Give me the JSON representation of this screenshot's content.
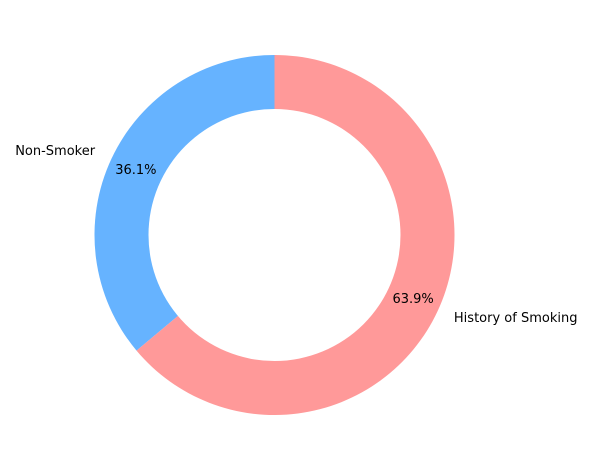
{
  "chart_data": {
    "type": "pie",
    "title": "",
    "hole": "donut",
    "start_angle_deg": 90,
    "direction": "counterclockwise",
    "slices": [
      {
        "label": "Non-Smoker",
        "value": 36.1,
        "pct_text": "36.1%",
        "color": "#66b3ff"
      },
      {
        "label": "History of Smoking",
        "value": 63.9,
        "pct_text": "63.9%",
        "color": "#ff9999"
      }
    ]
  }
}
